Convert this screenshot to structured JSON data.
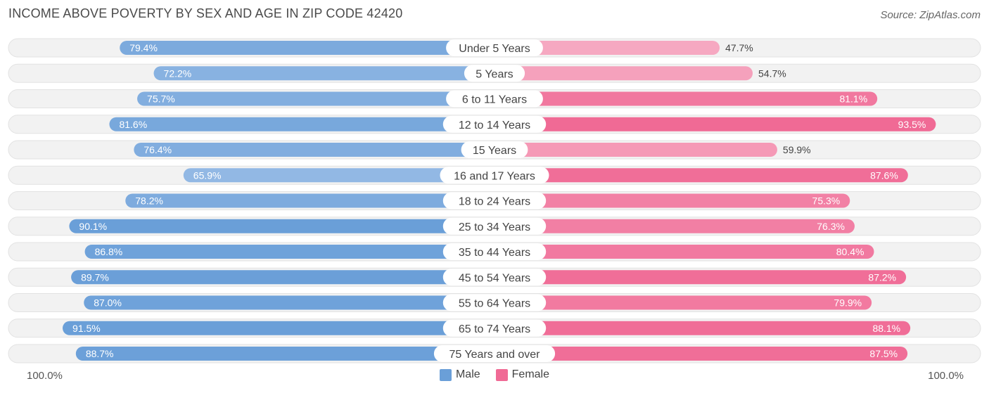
{
  "title": "INCOME ABOVE POVERTY BY SEX AND AGE IN ZIP CODE 42420",
  "source": "Source: ZipAtlas.com",
  "axis": {
    "left_label": "100.0%",
    "right_label": "100.0%"
  },
  "legend": {
    "male_label": "Male",
    "female_label": "Female"
  },
  "colors": {
    "male_dark": "#6a9fd8",
    "male_light": "#adc9ec",
    "female_dark": "#f06a95",
    "female_light": "#f6a8c1",
    "track": "#f0f0f0"
  },
  "chart_data": {
    "type": "bar",
    "orientation": "horizontal-diverging",
    "title": "INCOME ABOVE POVERTY BY SEX AND AGE IN ZIP CODE 42420",
    "xlim": [
      0,
      100
    ],
    "categories": [
      "Under 5 Years",
      "5 Years",
      "6 to 11 Years",
      "12 to 14 Years",
      "15 Years",
      "16 and 17 Years",
      "18 to 24 Years",
      "25 to 34 Years",
      "35 to 44 Years",
      "45 to 54 Years",
      "55 to 64 Years",
      "65 to 74 Years",
      "75 Years and over"
    ],
    "series": [
      {
        "name": "Male",
        "values": [
          79.4,
          72.2,
          75.7,
          81.6,
          76.4,
          65.9,
          78.2,
          90.1,
          86.8,
          89.7,
          87.0,
          91.5,
          88.7
        ],
        "labels": [
          "79.4%",
          "72.2%",
          "75.7%",
          "81.6%",
          "76.4%",
          "65.9%",
          "78.2%",
          "90.1%",
          "86.8%",
          "89.7%",
          "87.0%",
          "91.5%",
          "88.7%"
        ]
      },
      {
        "name": "Female",
        "values": [
          47.7,
          54.7,
          81.1,
          93.5,
          59.9,
          87.6,
          75.3,
          76.3,
          80.4,
          87.2,
          79.9,
          88.1,
          87.5
        ],
        "labels": [
          "47.7%",
          "54.7%",
          "81.1%",
          "93.5%",
          "59.9%",
          "87.6%",
          "75.3%",
          "76.3%",
          "80.4%",
          "87.2%",
          "79.9%",
          "88.1%",
          "87.5%"
        ]
      }
    ],
    "legend_position": "bottom-center"
  }
}
